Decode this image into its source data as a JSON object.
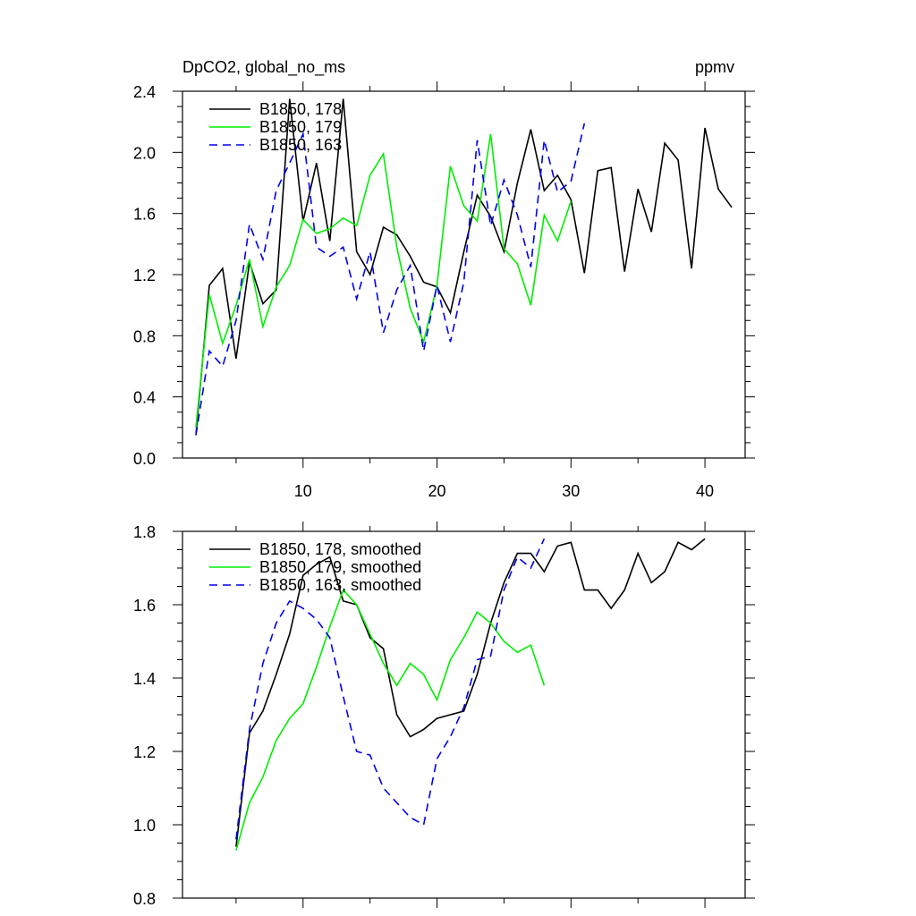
{
  "figure": {
    "title_left": "DpCO2, global_no_ms",
    "title_right": "ppmv"
  },
  "chart_data": [
    {
      "type": "line",
      "xlim": [
        1,
        43
      ],
      "ylim": [
        0,
        2.4
      ],
      "xticks": [
        10,
        20,
        30,
        40
      ],
      "xtick_labels": [
        "10",
        "20",
        "30",
        "40"
      ],
      "yticks": [
        0,
        0.4,
        0.8,
        1.2,
        1.6,
        2.0,
        2.4
      ],
      "ytick_labels": [
        "0.0",
        "0.4",
        "0.8",
        "1.2",
        "1.6",
        "2.0",
        "2.4"
      ],
      "legend_position": "top-left",
      "series": [
        {
          "name": "B1850, 178",
          "color": "#000000",
          "dash": "solid",
          "x": [
            2,
            3,
            4,
            5,
            6,
            7,
            8,
            9,
            10,
            11,
            12,
            13,
            14,
            15,
            16,
            17,
            18,
            19,
            20,
            21,
            22,
            23,
            24,
            25,
            26,
            27,
            28,
            29,
            30,
            31,
            32,
            33,
            34,
            35,
            36,
            37,
            38,
            39,
            40,
            41,
            42
          ],
          "values": [
            0.15,
            1.13,
            1.24,
            0.65,
            1.28,
            1.01,
            1.1,
            2.35,
            1.55,
            1.93,
            1.42,
            2.35,
            1.35,
            1.2,
            1.51,
            1.46,
            1.32,
            1.15,
            1.12,
            0.95,
            1.35,
            1.72,
            1.58,
            1.35,
            1.8,
            2.15,
            1.75,
            1.85,
            1.69,
            1.21,
            1.88,
            1.9,
            1.22,
            1.76,
            1.48,
            2.06,
            1.95,
            1.24,
            2.16,
            1.76,
            1.64
          ]
        },
        {
          "name": "B1850, 179",
          "color": "#00ee00",
          "dash": "solid",
          "x": [
            2,
            3,
            4,
            5,
            6,
            7,
            8,
            9,
            10,
            11,
            12,
            13,
            14,
            15,
            16,
            17,
            18,
            19,
            20,
            21,
            22,
            23,
            24,
            25,
            26,
            27,
            28,
            29,
            30
          ],
          "values": [
            0.2,
            1.07,
            0.75,
            1.0,
            1.3,
            0.86,
            1.12,
            1.26,
            1.56,
            1.47,
            1.5,
            1.57,
            1.52,
            1.85,
            1.99,
            1.38,
            0.98,
            0.76,
            1.13,
            1.91,
            1.65,
            1.55,
            2.12,
            1.37,
            1.27,
            1.0,
            1.59,
            1.42,
            1.68
          ]
        },
        {
          "name": "B1850, 163",
          "color": "#0000ee",
          "dash": "dashed",
          "x": [
            2,
            3,
            4,
            5,
            6,
            7,
            8,
            9,
            10,
            11,
            12,
            13,
            14,
            15,
            16,
            17,
            18,
            19,
            20,
            21,
            22,
            23,
            24,
            25,
            26,
            27,
            28,
            29,
            30,
            31
          ],
          "values": [
            0.15,
            0.7,
            0.6,
            0.9,
            1.53,
            1.3,
            1.75,
            1.93,
            2.12,
            1.38,
            1.32,
            1.38,
            1.04,
            1.35,
            0.82,
            1.1,
            1.26,
            0.7,
            1.13,
            0.76,
            1.15,
            2.08,
            1.52,
            1.82,
            1.59,
            1.25,
            2.08,
            1.74,
            1.81,
            2.19
          ]
        }
      ]
    },
    {
      "type": "line",
      "xlim": [
        1,
        43
      ],
      "ylim": [
        0.8,
        1.8
      ],
      "xticks": [
        10,
        20,
        30,
        40
      ],
      "yticks": [
        0.8,
        1.0,
        1.2,
        1.4,
        1.6,
        1.8
      ],
      "ytick_labels": [
        "0.8",
        "1.0",
        "1.2",
        "1.4",
        "1.6",
        "1.8"
      ],
      "legend_position": "top-left",
      "series": [
        {
          "name": "B1850, 178, smoothed",
          "color": "#000000",
          "dash": "solid",
          "x": [
            5,
            6,
            7,
            8,
            9,
            10,
            11,
            12,
            13,
            14,
            15,
            16,
            17,
            18,
            19,
            20,
            21,
            22,
            23,
            24,
            25,
            26,
            27,
            28,
            29,
            30,
            31,
            32,
            33,
            34,
            35,
            36,
            37,
            38,
            39,
            40
          ],
          "values": [
            0.94,
            1.25,
            1.31,
            1.41,
            1.52,
            1.68,
            1.71,
            1.73,
            1.61,
            1.6,
            1.51,
            1.48,
            1.3,
            1.24,
            1.26,
            1.29,
            1.3,
            1.31,
            1.41,
            1.55,
            1.66,
            1.74,
            1.74,
            1.69,
            1.76,
            1.77,
            1.64,
            1.64,
            1.59,
            1.64,
            1.74,
            1.66,
            1.69,
            1.77,
            1.75,
            1.78
          ]
        },
        {
          "name": "B1850, 179, smoothed",
          "color": "#00ee00",
          "dash": "solid",
          "x": [
            5,
            6,
            7,
            8,
            9,
            10,
            11,
            12,
            13,
            14,
            15,
            16,
            17,
            18,
            19,
            20,
            21,
            22,
            23,
            24,
            25,
            26,
            27,
            28
          ],
          "values": [
            0.93,
            1.06,
            1.13,
            1.23,
            1.29,
            1.33,
            1.43,
            1.54,
            1.64,
            1.6,
            1.52,
            1.44,
            1.38,
            1.44,
            1.41,
            1.34,
            1.45,
            1.51,
            1.58,
            1.55,
            1.5,
            1.47,
            1.49,
            1.38
          ]
        },
        {
          "name": "B1850, 163, smoothed",
          "color": "#0000ee",
          "dash": "dashed",
          "x": [
            5,
            6,
            7,
            8,
            9,
            10,
            11,
            12,
            13,
            14,
            15,
            16,
            17,
            18,
            19,
            20,
            21,
            22,
            23,
            24,
            25,
            26,
            27,
            28
          ],
          "values": [
            0.96,
            1.26,
            1.44,
            1.55,
            1.61,
            1.59,
            1.56,
            1.51,
            1.35,
            1.2,
            1.19,
            1.1,
            1.06,
            1.02,
            1.0,
            1.18,
            1.24,
            1.32,
            1.45,
            1.46,
            1.64,
            1.73,
            1.7,
            1.78
          ]
        }
      ]
    }
  ]
}
